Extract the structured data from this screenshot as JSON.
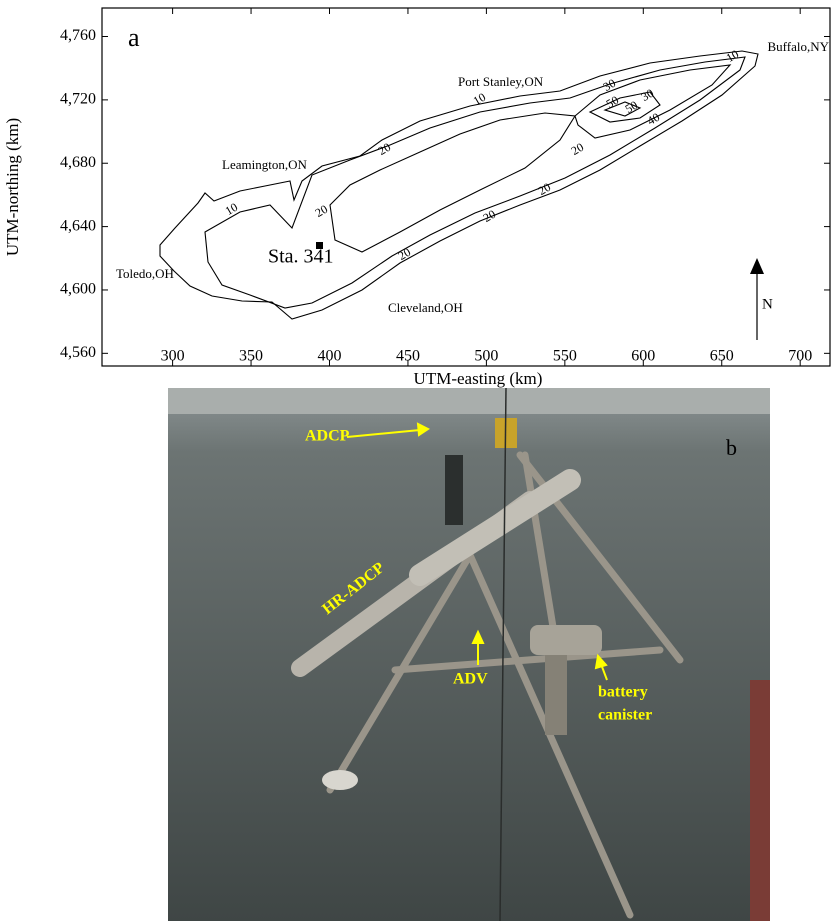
{
  "map": {
    "panel_label": "a",
    "xlabel": "UTM-easting (km)",
    "ylabel": "UTM-northing (km)",
    "xlim": [
      255,
      719
    ],
    "ylim": [
      4552,
      4778
    ],
    "xticks": [
      300,
      350,
      400,
      450,
      500,
      550,
      600,
      650,
      700
    ],
    "yticks": [
      {
        "value": 4560,
        "label": "4,560"
      },
      {
        "value": 4600,
        "label": "4,600"
      },
      {
        "value": 4640,
        "label": "4,640"
      },
      {
        "value": 4680,
        "label": "4,680"
      },
      {
        "value": 4720,
        "label": "4,720"
      },
      {
        "value": 4760,
        "label": "4,760"
      }
    ],
    "places": [
      "Buffalo,NY",
      "Port Stanley,ON",
      "Leamington,ON",
      "Toledo,OH",
      "Cleveland,OH"
    ],
    "station": "Sta. 341",
    "north": "N",
    "contour_labels": [
      "10",
      "10",
      "10",
      "20",
      "20",
      "20",
      "20",
      "20",
      "20",
      "30",
      "30",
      "40",
      "50",
      "50"
    ]
  },
  "photo": {
    "panel_label": "b",
    "labels": [
      "ADCP",
      "HR-ADCP",
      "ADV",
      "battery",
      "canister"
    ]
  }
}
